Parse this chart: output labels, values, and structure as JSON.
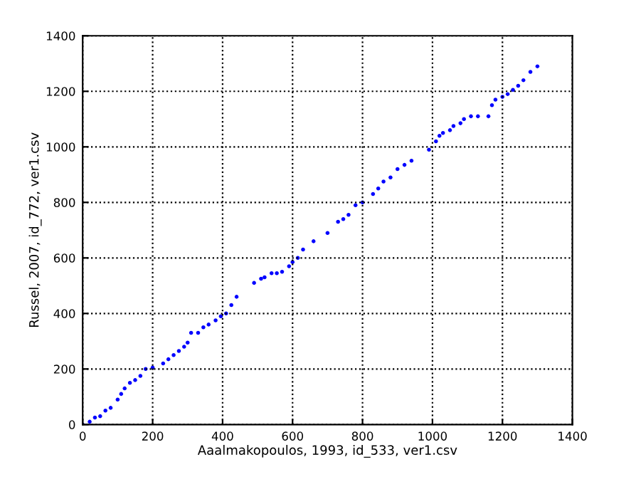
{
  "chart_data": {
    "type": "scatter",
    "xlabel": "Aaalmakopoulos, 1993, id_533, ver1.csv",
    "ylabel": "Russel, 2007, id_772, ver1.csv",
    "x": [
      0,
      20,
      35,
      50,
      65,
      80,
      100,
      110,
      120,
      135,
      150,
      165,
      180,
      200,
      230,
      245,
      260,
      275,
      290,
      300,
      310,
      330,
      345,
      360,
      380,
      395,
      410,
      425,
      440,
      490,
      510,
      520,
      540,
      555,
      570,
      590,
      600,
      615,
      630,
      660,
      700,
      730,
      745,
      760,
      780,
      800,
      830,
      845,
      860,
      880,
      900,
      920,
      940,
      990,
      1010,
      1020,
      1030,
      1050,
      1060,
      1080,
      1090,
      1110,
      1130,
      1160,
      1170,
      1180,
      1200,
      1215,
      1230,
      1245,
      1260,
      1280,
      1300
    ],
    "series": [
      {
        "color": "#0000ff",
        "values": [
          0,
          10,
          25,
          30,
          50,
          60,
          90,
          110,
          130,
          150,
          160,
          175,
          200,
          205,
          220,
          235,
          250,
          265,
          280,
          295,
          330,
          330,
          350,
          360,
          375,
          390,
          400,
          430,
          460,
          510,
          525,
          530,
          545,
          545,
          550,
          570,
          585,
          600,
          630,
          660,
          690,
          730,
          740,
          755,
          790,
          800,
          830,
          850,
          875,
          890,
          920,
          935,
          950,
          990,
          1020,
          1040,
          1050,
          1060,
          1075,
          1085,
          1100,
          1110,
          1110,
          1110,
          1150,
          1170,
          1180,
          1190,
          1205,
          1220,
          1240,
          1270,
          1290
        ]
      }
    ],
    "xlim": [
      0,
      1400
    ],
    "ylim": [
      0,
      1400
    ],
    "xticks": [
      0,
      200,
      400,
      600,
      800,
      1000,
      1200,
      1400
    ],
    "yticks": [
      0,
      200,
      400,
      600,
      800,
      1000,
      1200,
      1400
    ],
    "grid": true,
    "marker": "circle",
    "legend": false
  }
}
